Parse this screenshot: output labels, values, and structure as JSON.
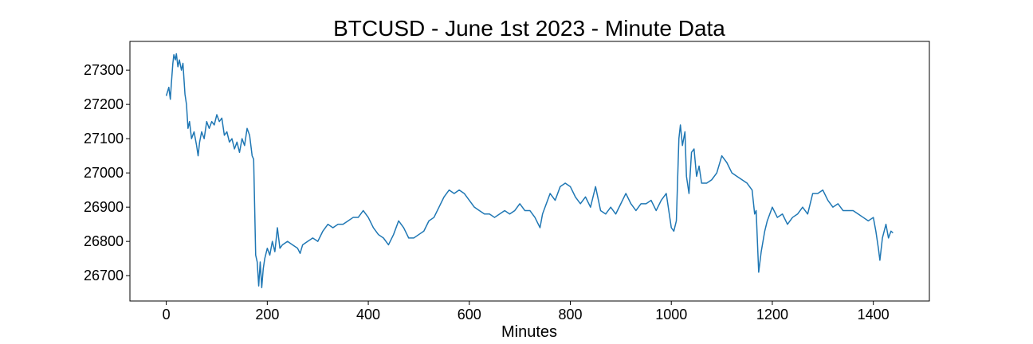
{
  "chart_data": {
    "type": "line",
    "title": "BTCUSD - June 1st 2023 - Minute Data",
    "x_label": "Minutes",
    "color": "#1f77b4",
    "grid": false,
    "xlim": [
      -72,
      1511
    ],
    "xticks": [
      0,
      200,
      400,
      600,
      800,
      1000,
      1200,
      1400
    ],
    "ylim": [
      26626,
      27384
    ],
    "yticks": [
      26700,
      26800,
      26900,
      27000,
      27100,
      27200,
      27300
    ],
    "x": [
      0,
      3,
      5,
      8,
      10,
      13,
      15,
      18,
      20,
      23,
      26,
      30,
      33,
      37,
      40,
      43,
      46,
      50,
      55,
      60,
      63,
      66,
      70,
      75,
      80,
      85,
      90,
      95,
      100,
      105,
      110,
      115,
      120,
      125,
      130,
      135,
      140,
      145,
      150,
      155,
      160,
      165,
      170,
      173,
      175,
      177,
      180,
      183,
      186,
      189,
      192,
      195,
      200,
      205,
      210,
      215,
      220,
      225,
      230,
      240,
      250,
      260,
      265,
      270,
      280,
      290,
      300,
      310,
      320,
      330,
      340,
      350,
      360,
      370,
      380,
      390,
      400,
      410,
      420,
      430,
      440,
      450,
      460,
      470,
      480,
      490,
      500,
      510,
      520,
      530,
      540,
      550,
      560,
      570,
      580,
      590,
      600,
      610,
      620,
      630,
      640,
      650,
      660,
      670,
      680,
      690,
      700,
      710,
      720,
      730,
      740,
      745,
      750,
      760,
      770,
      780,
      790,
      800,
      810,
      820,
      830,
      840,
      850,
      860,
      870,
      880,
      890,
      900,
      910,
      920,
      930,
      940,
      950,
      960,
      970,
      980,
      990,
      1000,
      1005,
      1010,
      1015,
      1018,
      1022,
      1027,
      1030,
      1035,
      1040,
      1045,
      1050,
      1055,
      1060,
      1070,
      1080,
      1090,
      1100,
      1110,
      1120,
      1130,
      1140,
      1150,
      1160,
      1165,
      1168,
      1173,
      1178,
      1185,
      1190,
      1200,
      1210,
      1220,
      1230,
      1240,
      1250,
      1260,
      1270,
      1280,
      1290,
      1300,
      1310,
      1320,
      1330,
      1340,
      1350,
      1360,
      1370,
      1380,
      1390,
      1400,
      1405,
      1410,
      1413,
      1418,
      1425,
      1430,
      1435,
      1439
    ],
    "values": [
      27225,
      27240,
      27250,
      27215,
      27260,
      27320,
      27345,
      27330,
      27348,
      27310,
      27330,
      27300,
      27320,
      27230,
      27200,
      27130,
      27150,
      27100,
      27120,
      27080,
      27050,
      27090,
      27120,
      27100,
      27150,
      27130,
      27150,
      27140,
      27170,
      27150,
      27160,
      27110,
      27120,
      27090,
      27100,
      27070,
      27090,
      27060,
      27100,
      27080,
      27130,
      27110,
      27050,
      27040,
      26900,
      26760,
      26740,
      26670,
      26740,
      26665,
      26720,
      26750,
      26780,
      26760,
      26800,
      26770,
      26840,
      26780,
      26790,
      26800,
      26790,
      26780,
      26765,
      26790,
      26800,
      26810,
      26800,
      26830,
      26850,
      26840,
      26850,
      26850,
      26860,
      26870,
      26870,
      26890,
      26870,
      26840,
      26820,
      26810,
      26790,
      26820,
      26860,
      26840,
      26810,
      26810,
      26820,
      26830,
      26860,
      26870,
      26900,
      26930,
      26950,
      26940,
      26950,
      26940,
      26920,
      26900,
      26890,
      26880,
      26880,
      26870,
      26880,
      26890,
      26880,
      26890,
      26910,
      26890,
      26890,
      26870,
      26840,
      26880,
      26900,
      26940,
      26920,
      26960,
      26970,
      26960,
      26930,
      26910,
      26930,
      26900,
      26960,
      26890,
      26880,
      26900,
      26880,
      26910,
      26940,
      26910,
      26890,
      26910,
      26910,
      26920,
      26890,
      26920,
      26940,
      26840,
      26830,
      26860,
      27100,
      27140,
      27080,
      27120,
      26990,
      26940,
      27060,
      27070,
      26990,
      27020,
      26970,
      26970,
      26980,
      27000,
      27050,
      27030,
      27000,
      26990,
      26980,
      26970,
      26950,
      26880,
      26890,
      26710,
      26770,
      26830,
      26860,
      26900,
      26870,
      26880,
      26850,
      26870,
      26880,
      26900,
      26880,
      26940,
      26940,
      26950,
      26920,
      26900,
      26910,
      26890,
      26890,
      26890,
      26880,
      26870,
      26860,
      26870,
      26830,
      26780,
      26745,
      26810,
      26850,
      26810,
      26830,
      26825
    ]
  }
}
